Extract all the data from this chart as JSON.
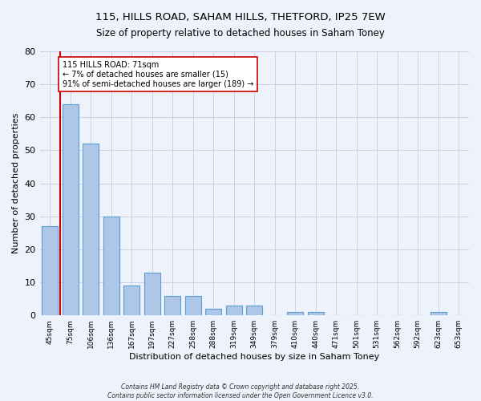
{
  "title1": "115, HILLS ROAD, SAHAM HILLS, THETFORD, IP25 7EW",
  "title2": "Size of property relative to detached houses in Saham Toney",
  "xlabel": "Distribution of detached houses by size in Saham Toney",
  "ylabel": "Number of detached properties",
  "categories": [
    "45sqm",
    "75sqm",
    "106sqm",
    "136sqm",
    "167sqm",
    "197sqm",
    "227sqm",
    "258sqm",
    "288sqm",
    "319sqm",
    "349sqm",
    "379sqm",
    "410sqm",
    "440sqm",
    "471sqm",
    "501sqm",
    "531sqm",
    "562sqm",
    "592sqm",
    "623sqm",
    "653sqm"
  ],
  "values": [
    27,
    64,
    52,
    30,
    9,
    13,
    6,
    6,
    2,
    3,
    3,
    0,
    1,
    1,
    0,
    0,
    0,
    0,
    0,
    1,
    0
  ],
  "bar_color": "#aec6e8",
  "bar_edge_color": "#5a9fd4",
  "ylim": [
    0,
    80
  ],
  "yticks": [
    0,
    10,
    20,
    30,
    40,
    50,
    60,
    70,
    80
  ],
  "marker_line_color": "#cc0000",
  "annotation_text": "115 HILLS ROAD: 71sqm\n← 7% of detached houses are smaller (15)\n91% of semi-detached houses are larger (189) →",
  "annotation_box_color": "#ffffff",
  "annotation_box_edge": "#cc0000",
  "bg_color": "#eef2fb",
  "grid_color": "#c8d0e8",
  "footer1": "Contains HM Land Registry data © Crown copyright and database right 2025.",
  "footer2": "Contains public sector information licensed under the Open Government Licence v3.0."
}
